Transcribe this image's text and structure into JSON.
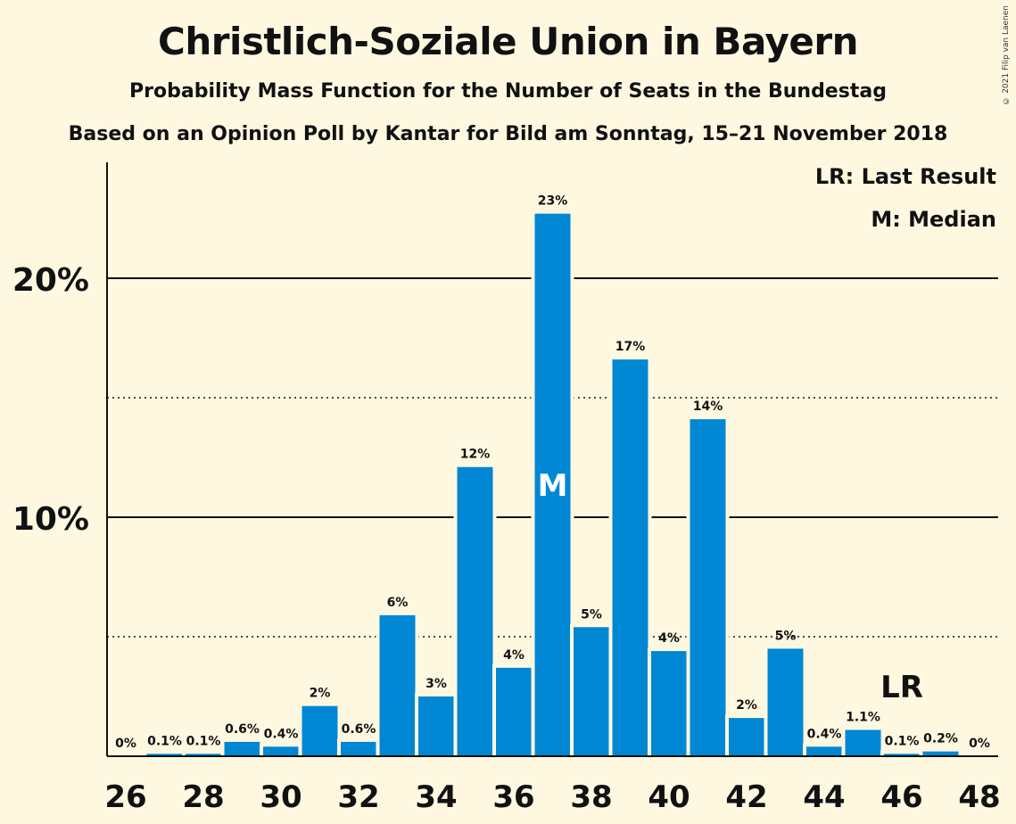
{
  "title": "Christlich-Soziale Union in Bayern",
  "subtitle": "Probability Mass Function for the Number of Seats in the Bundestag",
  "subtitle2": "Based on an Opinion Poll by Kantar for Bild am Sonntag, 15–21 November 2018",
  "copyright": "© 2021 Filip van Laenen",
  "legend": {
    "last_result": "LR: Last Result",
    "median": "M: Median"
  },
  "colors": {
    "bar": "#0087d4",
    "background": "#fff8e1"
  },
  "chart_data": {
    "type": "bar",
    "categories": [
      26,
      27,
      28,
      29,
      30,
      31,
      32,
      33,
      34,
      35,
      36,
      37,
      38,
      39,
      40,
      41,
      42,
      43,
      44,
      45,
      46,
      47,
      48
    ],
    "values": [
      0,
      0.1,
      0.1,
      0.6,
      0.4,
      2.1,
      0.6,
      5.9,
      2.5,
      12.1,
      3.7,
      22.7,
      5.4,
      16.6,
      4.4,
      14.1,
      1.6,
      4.5,
      0.4,
      1.1,
      0.1,
      0.2,
      0
    ],
    "labels": [
      "0%",
      "0.1%",
      "0.1%",
      "0.6%",
      "0.4%",
      "2%",
      "0.6%",
      "6%",
      "3%",
      "12%",
      "4%",
      "23%",
      "5%",
      "17%",
      "4%",
      "14%",
      "2%",
      "5%",
      "0.4%",
      "1.1%",
      "0.1%",
      "0.2%",
      "0%"
    ],
    "x_tick_labels": [
      "26",
      "28",
      "30",
      "32",
      "34",
      "36",
      "38",
      "40",
      "42",
      "44",
      "46",
      "48"
    ],
    "y_tick_labels": [
      {
        "value": 10,
        "label": "10%"
      },
      {
        "value": 20,
        "label": "20%"
      }
    ],
    "ylim": [
      0,
      24.7
    ],
    "solid_gridlines": [
      10,
      20
    ],
    "dotted_gridlines": [
      5,
      15
    ],
    "median_seat": 37,
    "median_marker": "M",
    "last_result_seat": 46,
    "last_result_marker": "LR",
    "xlabel": "",
    "ylabel": ""
  }
}
